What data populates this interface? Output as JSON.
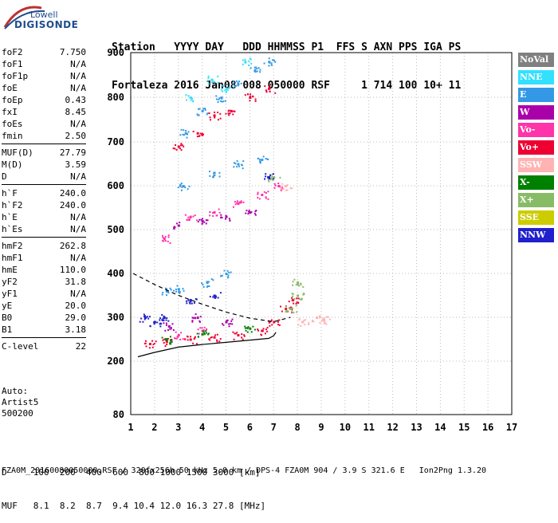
{
  "logo": {
    "line1": "Lowell",
    "line2": "DIGISONDE"
  },
  "header": {
    "row1": "Station   YYYY DAY   DDD HHMMSS P1  FFS S AXN PPS IGA PS",
    "row2": "Fortaleza 2016 Jan08 008 050000 RSF     1 714 100 10+ 11"
  },
  "params": [
    {
      "label": "foF2",
      "value": "7.750"
    },
    {
      "label": "foF1",
      "value": "N/A"
    },
    {
      "label": "foF1p",
      "value": "N/A"
    },
    {
      "label": "foE",
      "value": "N/A"
    },
    {
      "label": "foEp",
      "value": "0.43"
    },
    {
      "label": "fxI",
      "value": "8.45"
    },
    {
      "label": "foEs",
      "value": "N/A"
    },
    {
      "label": "fmin",
      "value": "2.50"
    },
    {
      "label": "MUF(D)",
      "value": "27.79"
    },
    {
      "label": "M(D)",
      "value": "3.59"
    },
    {
      "label": "D",
      "value": "N/A"
    },
    {
      "label": "h`F",
      "value": "240.0"
    },
    {
      "label": "h`F2",
      "value": "240.0"
    },
    {
      "label": "h`E",
      "value": "N/A"
    },
    {
      "label": "h`Es",
      "value": "N/A"
    },
    {
      "label": "hmF2",
      "value": "262.8"
    },
    {
      "label": "hmF1",
      "value": "N/A"
    },
    {
      "label": "hmE",
      "value": "110.0"
    },
    {
      "label": "yF2",
      "value": "31.8"
    },
    {
      "label": "yF1",
      "value": "N/A"
    },
    {
      "label": "yE",
      "value": "20.0"
    },
    {
      "label": "B0",
      "value": "29.0"
    },
    {
      "label": "B1",
      "value": "3.18"
    },
    {
      "label": "C-level",
      "value": "22"
    }
  ],
  "auto": {
    "line1": "Auto:",
    "line2": "Artist5",
    "line3": "500200"
  },
  "legend": [
    {
      "label": "NoVal",
      "color": "#808080"
    },
    {
      "label": "NNE",
      "color": "#33e0ff"
    },
    {
      "label": "E",
      "color": "#3399e6"
    },
    {
      "label": "W",
      "color": "#aa00aa"
    },
    {
      "label": "Vo-",
      "color": "#ff33aa"
    },
    {
      "label": "Vo+",
      "color": "#ee0033"
    },
    {
      "label": "SSW",
      "color": "#ffb3b3"
    },
    {
      "label": "X-",
      "color": "#008000"
    },
    {
      "label": "X+",
      "color": "#88bb66"
    },
    {
      "label": "SSE",
      "color": "#cccc00"
    },
    {
      "label": "NNW",
      "color": "#2020cc"
    }
  ],
  "footer": {
    "d_row": "D     100  200  400  600  800 1000 1500 3000 [km]",
    "muf_row": "MUF   8.1  8.2  8.7  9.4 10.4 12.0 16.3 27.8 [MHz]",
    "file_row": "FZA0M_20160080050000.RSF / 320fx256h 50 kHz 5.0 km / DPS-4 FZA0M 904 / 3.9 S 321.6 E   Ion2Png 1.3.20"
  },
  "chart_data": {
    "type": "scatter",
    "x_ticks": [
      1,
      2,
      3,
      4,
      5,
      6,
      7,
      8,
      9,
      10,
      11,
      12,
      13,
      14,
      15,
      16,
      17
    ],
    "y_ticks": [
      80,
      200,
      300,
      400,
      500,
      600,
      700,
      800,
      900
    ],
    "xlim": [
      1,
      17
    ],
    "y_scale": "nonlinear",
    "grid": true,
    "legend_position": "right",
    "series": [
      {
        "name": "NoVal",
        "points": []
      },
      {
        "name": "NNE",
        "points": [
          [
            3.5,
            800
          ],
          [
            4.4,
            840
          ],
          [
            5.0,
            820
          ],
          [
            5.8,
            880
          ]
        ]
      },
      {
        "name": "E",
        "points": [
          [
            3.3,
            720
          ],
          [
            4.0,
            770
          ],
          [
            4.8,
            800
          ],
          [
            5.5,
            830
          ],
          [
            6.2,
            860
          ],
          [
            6.8,
            880
          ],
          [
            3.2,
            600
          ],
          [
            4.5,
            630
          ],
          [
            5.5,
            650
          ],
          [
            6.5,
            660
          ],
          [
            2.5,
            360
          ],
          [
            3.0,
            365
          ],
          [
            4.2,
            380
          ],
          [
            5.0,
            400
          ]
        ]
      },
      {
        "name": "W",
        "points": [
          [
            3.0,
            510
          ],
          [
            4.0,
            520
          ],
          [
            5.0,
            530
          ],
          [
            6.0,
            540
          ],
          [
            2.6,
            280
          ],
          [
            3.8,
            300
          ],
          [
            5.0,
            290
          ]
        ]
      },
      {
        "name": "Vo-",
        "points": [
          [
            2.4,
            480
          ],
          [
            3.5,
            530
          ],
          [
            4.5,
            540
          ],
          [
            5.5,
            560
          ],
          [
            6.5,
            580
          ],
          [
            7.2,
            600
          ],
          [
            3.0,
            260
          ],
          [
            4.0,
            270
          ]
        ]
      },
      {
        "name": "Vo+",
        "points": [
          [
            3.0,
            690
          ],
          [
            3.8,
            720
          ],
          [
            4.5,
            760
          ],
          [
            5.2,
            770
          ],
          [
            6.0,
            800
          ],
          [
            6.8,
            820
          ],
          [
            1.8,
            240
          ],
          [
            2.5,
            245
          ],
          [
            3.5,
            250
          ],
          [
            4.5,
            255
          ],
          [
            5.5,
            260
          ],
          [
            6.5,
            270
          ],
          [
            7.0,
            290
          ],
          [
            7.5,
            320
          ],
          [
            7.8,
            340
          ]
        ]
      },
      {
        "name": "SSW",
        "points": [
          [
            7.5,
            600
          ],
          [
            8.2,
            290
          ],
          [
            8.8,
            300
          ],
          [
            9.1,
            295
          ]
        ]
      },
      {
        "name": "X-",
        "points": [
          [
            2.5,
            250
          ],
          [
            4.0,
            262
          ],
          [
            6.0,
            275
          ]
        ]
      },
      {
        "name": "X+",
        "points": [
          [
            7.0,
            620
          ],
          [
            7.7,
            320
          ],
          [
            8.0,
            350
          ],
          [
            8.0,
            380
          ]
        ]
      },
      {
        "name": "SSE",
        "points": []
      },
      {
        "name": "NNW",
        "points": [
          [
            1.6,
            300
          ],
          [
            2.0,
            290
          ],
          [
            2.4,
            300
          ],
          [
            6.8,
            620
          ],
          [
            3.5,
            340
          ],
          [
            4.5,
            350
          ]
        ]
      }
    ],
    "curves": [
      {
        "name": "profile",
        "points": [
          [
            1.3,
            210
          ],
          [
            2,
            220
          ],
          [
            3,
            232
          ],
          [
            4,
            238
          ],
          [
            5,
            243
          ],
          [
            6,
            248
          ],
          [
            6.8,
            252
          ],
          [
            7.0,
            258
          ],
          [
            7.1,
            266
          ]
        ]
      },
      {
        "name": "dashed",
        "points": [
          [
            1.1,
            400
          ],
          [
            2,
            375
          ],
          [
            3,
            350
          ],
          [
            4,
            330
          ],
          [
            5,
            312
          ],
          [
            6,
            298
          ],
          [
            7,
            290
          ],
          [
            7.7,
            300
          ]
        ]
      }
    ]
  }
}
